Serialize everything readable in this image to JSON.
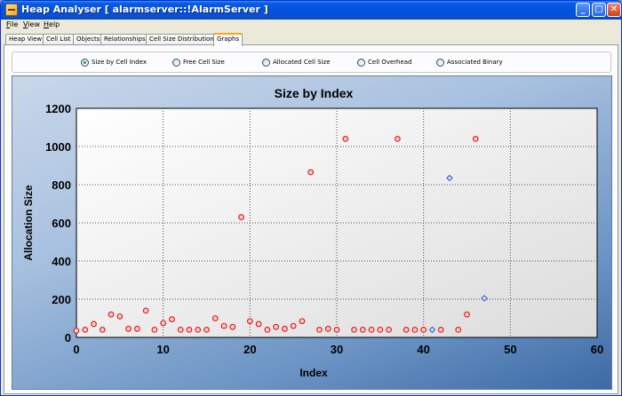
{
  "window": {
    "title": "Heap Analyser [ alarmserver::!AlarmServer ]",
    "controls": {
      "minimize": "_",
      "maximize": "□",
      "close": "✕"
    }
  },
  "menu": [
    {
      "ul": "F",
      "rest": "ile"
    },
    {
      "ul": "V",
      "rest": "iew"
    },
    {
      "ul": "H",
      "rest": "elp"
    }
  ],
  "tabs": [
    "Heap View",
    "Cell List",
    "Objects",
    "Relationships",
    "Cell Size Distributions",
    "Graphs"
  ],
  "active_tab": "Graphs",
  "graph_options": {
    "items": [
      "Size by Cell Index",
      "Free Cell Size",
      "Allocated Cell Size",
      "Cell Overhead",
      "Associated Binary"
    ],
    "selected": "Size by Cell Index"
  },
  "chart_data": {
    "type": "scatter",
    "title": "Size by Index",
    "xlabel": "Index",
    "ylabel": "Allocation Size",
    "xlim": [
      0,
      60
    ],
    "ylim": [
      0,
      1200
    ],
    "xticks": [
      0,
      10,
      20,
      30,
      40,
      50,
      60
    ],
    "yticks": [
      0,
      200,
      400,
      600,
      800,
      1000,
      1200
    ],
    "grid": true,
    "colors": {
      "allocated": "#e02020",
      "free": "#2f4fd0"
    },
    "series": [
      {
        "marker": "circle",
        "color": "#e02020",
        "points": [
          [
            0,
            35
          ],
          [
            1,
            40
          ],
          [
            2,
            70
          ],
          [
            3,
            40
          ],
          [
            4,
            120
          ],
          [
            5,
            110
          ],
          [
            6,
            45
          ],
          [
            7,
            45
          ],
          [
            8,
            140
          ],
          [
            9,
            40
          ],
          [
            10,
            75
          ],
          [
            11,
            95
          ],
          [
            12,
            40
          ],
          [
            13,
            40
          ],
          [
            14,
            40
          ],
          [
            15,
            40
          ],
          [
            16,
            100
          ],
          [
            17,
            60
          ],
          [
            18,
            55
          ],
          [
            19,
            630
          ],
          [
            20,
            85
          ],
          [
            21,
            70
          ],
          [
            22,
            40
          ],
          [
            23,
            55
          ],
          [
            24,
            45
          ],
          [
            25,
            60
          ],
          [
            26,
            85
          ],
          [
            27,
            865
          ],
          [
            28,
            40
          ],
          [
            29,
            45
          ],
          [
            30,
            40
          ],
          [
            31,
            1040
          ],
          [
            32,
            40
          ],
          [
            33,
            40
          ],
          [
            34,
            40
          ],
          [
            35,
            40
          ],
          [
            36,
            40
          ],
          [
            37,
            1040
          ],
          [
            38,
            40
          ],
          [
            39,
            40
          ],
          [
            40,
            40
          ],
          [
            42,
            40
          ],
          [
            44,
            40
          ],
          [
            45,
            120
          ],
          [
            46,
            1040
          ]
        ]
      },
      {
        "marker": "diamond",
        "color": "#2f4fd0",
        "points": [
          [
            41,
            40
          ],
          [
            43,
            835
          ],
          [
            47,
            205
          ]
        ]
      }
    ]
  }
}
